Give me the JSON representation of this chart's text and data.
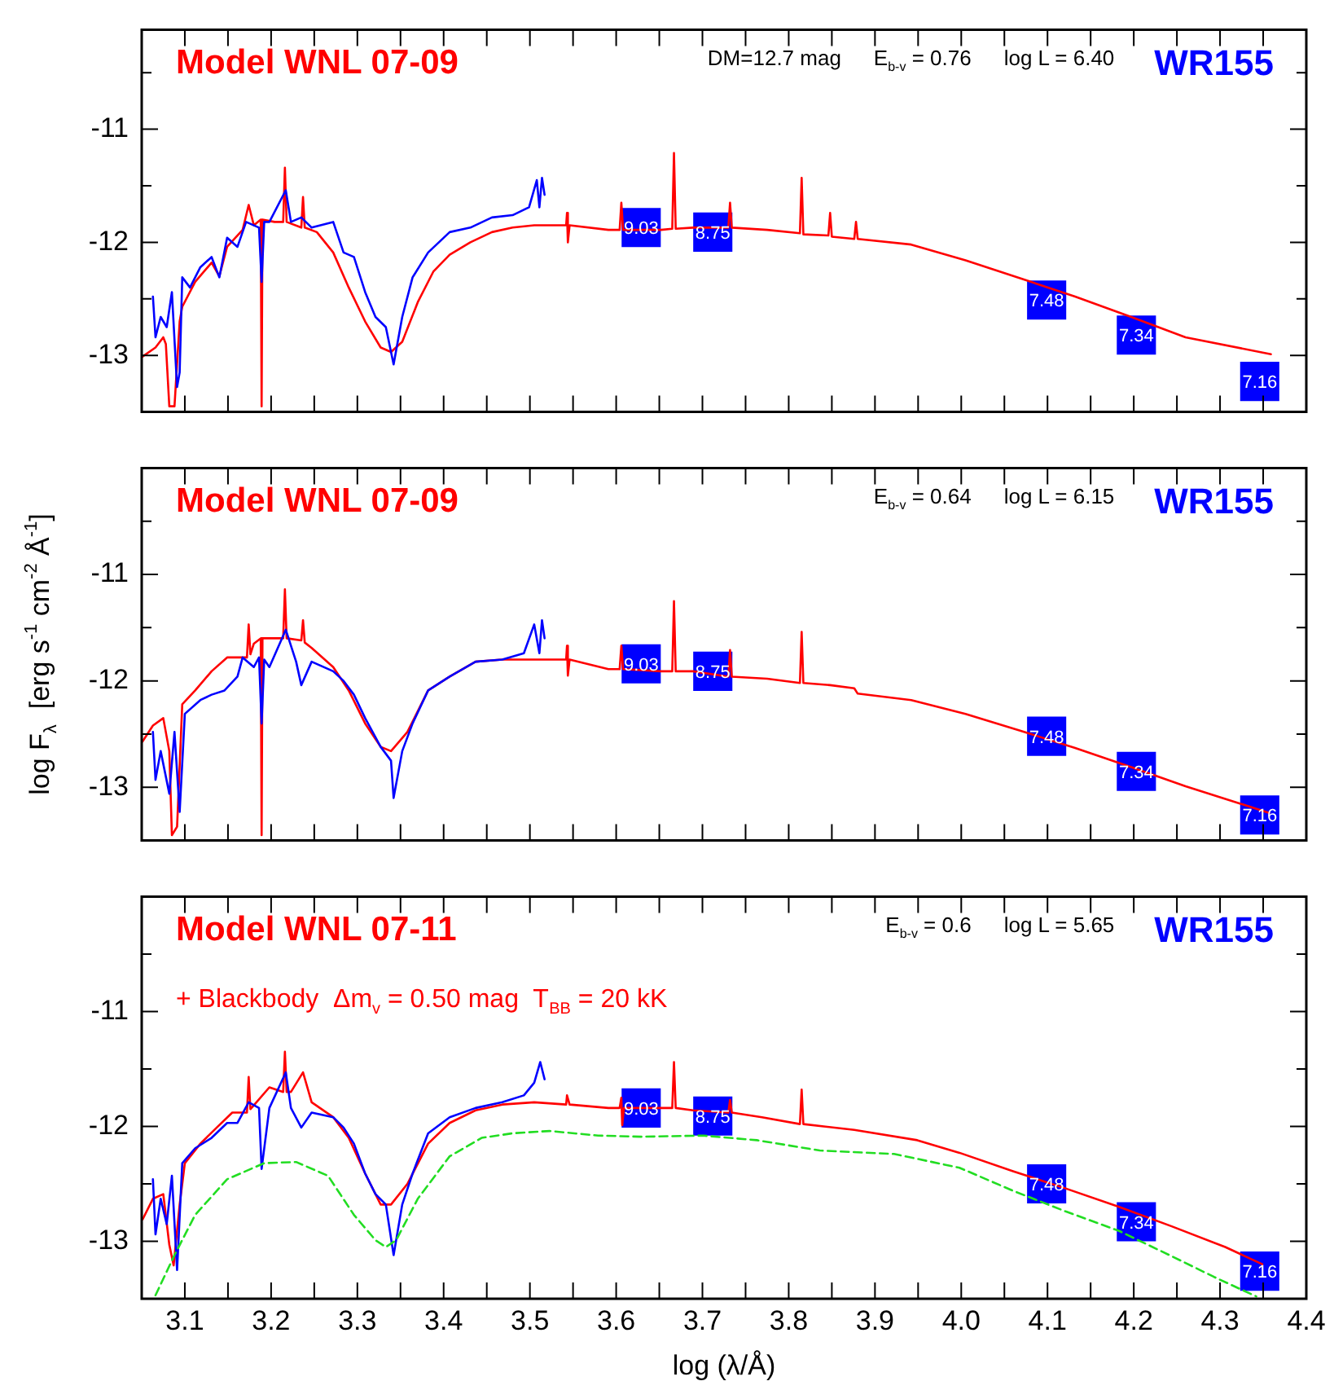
{
  "chart_data": [
    {
      "type": "line",
      "title": "Model WNL 07-09",
      "annotations": [
        "DM=12.7 mag",
        "E$_{b-v}$ = 0.76",
        "log L = 6.40",
        "WR155",
        {
          "text": "9.03",
          "x": 3.629,
          "y": -11.87
        },
        {
          "text": "8.75",
          "x": 3.712,
          "y": -11.91
        },
        {
          "text": "7.48",
          "x": 4.099,
          "y": -12.51
        },
        {
          "text": "7.34",
          "x": 4.203,
          "y": -12.82
        },
        {
          "text": "7.16",
          "x": 4.346,
          "y": -13.23
        }
      ],
      "xlim": [
        3.05,
        4.4
      ],
      "ylim": [
        -13.5,
        -10.12
      ],
      "tick_labels": "y",
      "xticks": [
        3.1,
        {
          "value": 3.15,
          "label": null
        },
        3.2,
        {
          "value": 3.25,
          "label": null
        },
        3.3,
        {
          "value": 3.35,
          "label": null
        },
        3.4,
        {
          "value": 3.45,
          "label": null
        },
        3.5,
        {
          "value": 3.55,
          "label": null
        },
        3.6,
        {
          "value": 3.65,
          "label": null
        },
        3.7,
        {
          "value": 3.75,
          "label": null
        },
        3.8,
        {
          "value": 3.85,
          "label": null
        },
        3.9,
        {
          "value": 3.95,
          "label": null
        },
        4,
        {
          "value": 4.05,
          "label": null
        },
        4.1,
        {
          "value": 4.15,
          "label": null
        },
        4.2,
        {
          "value": 4.25,
          "label": null
        },
        4.3,
        {
          "value": 4.35,
          "label": null
        },
        4.4
      ],
      "yticks": [
        {
          "value": -13,
          "label": "-13"
        },
        {
          "value": -12.5,
          "label": null
        },
        {
          "value": -12,
          "label": "-12"
        },
        {
          "value": -11.5,
          "label": null
        },
        {
          "value": -11,
          "label": "-11"
        },
        {
          "value": -10.5,
          "label": null
        }
      ],
      "series": [
        {
          "type": "scatter",
          "color": "#0000ff",
          "marker": "square",
          "x": [
            3.629,
            3.712,
            4.099,
            4.203,
            4.346
          ],
          "values": [
            -11.87,
            -11.91,
            -12.51,
            -12.82,
            -13.23
          ]
        },
        {
          "type": "line",
          "color": "#0000ff",
          "x": [
            3.063,
            3.066,
            3.072,
            3.079,
            3.085,
            3.091,
            3.094,
            3.097,
            3.106,
            3.118,
            3.131,
            3.14,
            3.149,
            3.161,
            3.171,
            3.186,
            3.189,
            3.192,
            3.198,
            3.217,
            3.223,
            3.235,
            3.247,
            3.272,
            3.284,
            3.296,
            3.309,
            3.321,
            3.333,
            3.342,
            3.352,
            3.364,
            3.382,
            3.407,
            3.431,
            3.456,
            3.48,
            3.499,
            3.508,
            3.511,
            3.514,
            3.517
          ],
          "values": [
            -12.48,
            -12.84,
            -12.66,
            -12.75,
            -12.44,
            -13.28,
            -13.15,
            -12.31,
            -12.4,
            -12.22,
            -12.13,
            -12.31,
            -11.96,
            -12.04,
            -11.82,
            -11.87,
            -12.35,
            -11.82,
            -11.82,
            -11.54,
            -11.82,
            -11.78,
            -11.87,
            -11.82,
            -12.09,
            -12.13,
            -12.44,
            -12.66,
            -12.75,
            -13.08,
            -12.66,
            -12.31,
            -12.09,
            -11.91,
            -11.87,
            -11.78,
            -11.76,
            -11.69,
            -11.45,
            -11.69,
            -11.43,
            -11.58
          ]
        },
        {
          "type": "line",
          "color": "#ff0000",
          "x": [
            3.051,
            3.066,
            3.075,
            3.078,
            3.082,
            3.088,
            3.094,
            3.097,
            3.112,
            3.131,
            3.14,
            3.149,
            3.167,
            3.174,
            3.18,
            3.188,
            3.189,
            3.19,
            3.204,
            3.214,
            3.216,
            3.218,
            3.235,
            3.237,
            3.239,
            3.253,
            3.272,
            3.29,
            3.309,
            3.327,
            3.339,
            3.352,
            3.37,
            3.388,
            3.407,
            3.431,
            3.456,
            3.48,
            3.505,
            3.542,
            3.543,
            3.544,
            3.546,
            3.591,
            3.604,
            3.606,
            3.608,
            3.652,
            3.665,
            3.667,
            3.669,
            3.689,
            3.73,
            3.732,
            3.734,
            3.775,
            3.813,
            3.815,
            3.817,
            3.846,
            3.848,
            3.85,
            3.876,
            3.878,
            3.88,
            3.942,
            4.005,
            4.069,
            4.132,
            4.197,
            4.26,
            4.359
          ],
          "values": [
            -13.01,
            -12.93,
            -12.84,
            -12.9,
            -13.45,
            -13.45,
            -12.7,
            -12.57,
            -12.35,
            -12.18,
            -12.3,
            -12.04,
            -11.89,
            -11.67,
            -11.85,
            -11.8,
            -13.45,
            -11.8,
            -11.82,
            -11.82,
            -11.34,
            -11.82,
            -11.87,
            -11.6,
            -11.87,
            -11.91,
            -12.09,
            -12.4,
            -12.7,
            -12.93,
            -12.97,
            -12.88,
            -12.53,
            -12.26,
            -12.11,
            -12.0,
            -11.91,
            -11.87,
            -11.85,
            -11.85,
            -11.74,
            -12.0,
            -11.85,
            -11.89,
            -11.89,
            -11.65,
            -11.89,
            -11.89,
            -11.88,
            -11.21,
            -11.88,
            -11.87,
            -11.87,
            -11.65,
            -11.87,
            -11.89,
            -11.92,
            -11.43,
            -11.93,
            -11.94,
            -11.74,
            -11.95,
            -11.97,
            -11.82,
            -11.97,
            -12.02,
            -12.16,
            -12.32,
            -12.48,
            -12.66,
            -12.84,
            -12.99
          ]
        }
      ]
    },
    {
      "type": "line",
      "title": "Model WNL 07-09",
      "ylabel": "log F$_{λ}$  [erg s$^{-1}$ cm$^{-2}$ Å$^{-1}$]",
      "annotations": [
        "E$_{b-v}$ = 0.64",
        "log L = 6.15",
        "WR155",
        {
          "text": "9.03",
          "x": 3.629,
          "y": -11.84
        },
        {
          "text": "8.75",
          "x": 3.712,
          "y": -11.91
        },
        {
          "text": "7.48",
          "x": 4.099,
          "y": -12.52
        },
        {
          "text": "7.34",
          "x": 4.203,
          "y": -12.85
        },
        {
          "text": "7.16",
          "x": 4.346,
          "y": -13.26
        }
      ],
      "xlim": [
        3.05,
        4.4
      ],
      "ylim": [
        -13.5,
        -10.0
      ],
      "tick_labels": "y",
      "xticks": [
        3.1,
        {
          "value": 3.15,
          "label": null
        },
        3.2,
        {
          "value": 3.25,
          "label": null
        },
        3.3,
        {
          "value": 3.35,
          "label": null
        },
        3.4,
        {
          "value": 3.45,
          "label": null
        },
        3.5,
        {
          "value": 3.55,
          "label": null
        },
        3.6,
        {
          "value": 3.65,
          "label": null
        },
        3.7,
        {
          "value": 3.75,
          "label": null
        },
        3.8,
        {
          "value": 3.85,
          "label": null
        },
        3.9,
        {
          "value": 3.95,
          "label": null
        },
        4,
        {
          "value": 4.05,
          "label": null
        },
        4.1,
        {
          "value": 4.15,
          "label": null
        },
        4.2,
        {
          "value": 4.25,
          "label": null
        },
        4.3,
        {
          "value": 4.35,
          "label": null
        },
        4.4
      ],
      "yticks": [
        {
          "value": -13,
          "label": "-13"
        },
        {
          "value": -12.5,
          "label": null
        },
        {
          "value": -12,
          "label": "-12"
        },
        {
          "value": -11.5,
          "label": null
        },
        {
          "value": -11,
          "label": "-11"
        },
        {
          "value": -10.5,
          "label": null
        }
      ],
      "series": [
        {
          "type": "scatter",
          "color": "#0000ff",
          "marker": "square",
          "x": [
            3.629,
            3.712,
            4.099,
            4.203,
            4.346
          ],
          "values": [
            -11.84,
            -11.91,
            -12.52,
            -12.85,
            -13.26
          ]
        },
        {
          "type": "line",
          "color": "#0000ff",
          "x": [
            3.063,
            3.066,
            3.072,
            3.082,
            3.088,
            3.094,
            3.1,
            3.118,
            3.131,
            3.146,
            3.161,
            3.167,
            3.18,
            3.186,
            3.189,
            3.192,
            3.198,
            3.217,
            3.229,
            3.235,
            3.247,
            3.272,
            3.284,
            3.296,
            3.309,
            3.327,
            3.339,
            3.342,
            3.352,
            3.364,
            3.382,
            3.407,
            3.437,
            3.468,
            3.493,
            3.505,
            3.511,
            3.514,
            3.517
          ],
          "values": [
            -12.48,
            -12.93,
            -12.66,
            -13.06,
            -12.48,
            -13.23,
            -12.31,
            -12.18,
            -12.13,
            -12.09,
            -11.96,
            -11.78,
            -11.87,
            -11.78,
            -12.4,
            -11.8,
            -11.87,
            -11.52,
            -11.82,
            -12.04,
            -11.82,
            -11.91,
            -12.0,
            -12.13,
            -12.35,
            -12.62,
            -12.75,
            -13.1,
            -12.66,
            -12.4,
            -12.09,
            -11.96,
            -11.82,
            -11.8,
            -11.74,
            -11.47,
            -11.74,
            -11.43,
            -11.6
          ]
        },
        {
          "type": "line",
          "color": "#ff0000",
          "x": [
            3.051,
            3.063,
            3.075,
            3.082,
            3.085,
            3.091,
            3.097,
            3.112,
            3.131,
            3.149,
            3.172,
            3.174,
            3.176,
            3.18,
            3.188,
            3.189,
            3.19,
            3.204,
            3.214,
            3.216,
            3.218,
            3.235,
            3.237,
            3.239,
            3.247,
            3.272,
            3.29,
            3.309,
            3.327,
            3.339,
            3.358,
            3.382,
            3.407,
            3.437,
            3.468,
            3.505,
            3.542,
            3.543,
            3.544,
            3.546,
            3.591,
            3.604,
            3.606,
            3.608,
            3.652,
            3.665,
            3.667,
            3.669,
            3.689,
            3.73,
            3.732,
            3.734,
            3.775,
            3.813,
            3.815,
            3.817,
            3.848,
            3.876,
            3.88,
            3.942,
            4.005,
            4.069,
            4.132,
            4.197,
            4.26,
            4.357
          ],
          "values": [
            -12.57,
            -12.42,
            -12.35,
            -12.66,
            -13.45,
            -13.37,
            -12.22,
            -12.09,
            -11.91,
            -11.78,
            -11.78,
            -11.47,
            -11.75,
            -11.65,
            -11.6,
            -13.45,
            -11.6,
            -11.6,
            -11.6,
            -11.14,
            -11.6,
            -11.62,
            -11.43,
            -11.64,
            -11.69,
            -11.87,
            -12.09,
            -12.4,
            -12.62,
            -12.66,
            -12.48,
            -12.09,
            -11.96,
            -11.82,
            -11.8,
            -11.8,
            -11.8,
            -11.67,
            -11.95,
            -11.8,
            -11.89,
            -11.89,
            -11.67,
            -11.89,
            -11.91,
            -11.91,
            -11.25,
            -11.91,
            -11.91,
            -11.96,
            -11.71,
            -11.96,
            -11.98,
            -12.02,
            -11.54,
            -12.02,
            -12.04,
            -12.07,
            -12.12,
            -12.18,
            -12.31,
            -12.47,
            -12.63,
            -12.81,
            -12.99,
            -13.24
          ]
        }
      ]
    },
    {
      "type": "line",
      "title": "Model WNL 07-11",
      "subtitle": "+ Blackbody  Δm$_{v}$ = 0.50 mag  T$_{BB}$ = 20 kK",
      "xlabel": "log (λ/Å)",
      "annotations": [
        "E$_{b-v}$ = 0.6",
        "log L = 5.65",
        "WR155",
        {
          "text": "9.03",
          "x": 3.629,
          "y": -11.84
        },
        {
          "text": "8.75",
          "x": 3.712,
          "y": -11.91
        },
        {
          "text": "7.48",
          "x": 4.099,
          "y": -12.5
        },
        {
          "text": "7.34",
          "x": 4.203,
          "y": -12.83
        },
        {
          "text": "7.16",
          "x": 4.346,
          "y": -13.26
        }
      ],
      "xlim": [
        3.05,
        4.4
      ],
      "ylim": [
        -13.5,
        -10.0
      ],
      "xticks": [
        3.1,
        {
          "value": 3.15,
          "label": null
        },
        3.2,
        {
          "value": 3.25,
          "label": null
        },
        3.3,
        {
          "value": 3.35,
          "label": null
        },
        3.4,
        {
          "value": 3.45,
          "label": null
        },
        3.5,
        {
          "value": 3.55,
          "label": null
        },
        3.6,
        {
          "value": 3.65,
          "label": null
        },
        3.7,
        {
          "value": 3.75,
          "label": null
        },
        3.8,
        {
          "value": 3.85,
          "label": null
        },
        3.9,
        {
          "value": 3.95,
          "label": null
        },
        {
          "value": 4,
          "label": "4.0"
        },
        {
          "value": 4.05,
          "label": null
        },
        4.1,
        {
          "value": 4.15,
          "label": null
        },
        4.2,
        {
          "value": 4.25,
          "label": null
        },
        4.3,
        {
          "value": 4.35,
          "label": null
        },
        4.4
      ],
      "yticks": [
        {
          "value": -13,
          "label": "-13"
        },
        {
          "value": -12.5,
          "label": null
        },
        {
          "value": -12,
          "label": "-12"
        },
        {
          "value": -11.5,
          "label": null
        },
        {
          "value": -11,
          "label": "-11"
        },
        {
          "value": -10.5,
          "label": null
        }
      ],
      "series": [
        {
          "type": "scatter",
          "color": "#0000ff",
          "marker": "square",
          "x": [
            3.629,
            3.712,
            4.099,
            4.203,
            4.346
          ],
          "values": [
            -11.84,
            -11.91,
            -12.5,
            -12.83,
            -13.26
          ]
        },
        {
          "type": "line",
          "color": "#22dd22",
          "line_style": "dashed",
          "x": [
            3.066,
            3.088,
            3.112,
            3.149,
            3.192,
            3.229,
            3.266,
            3.296,
            3.321,
            3.333,
            3.345,
            3.37,
            3.407,
            3.444,
            3.48,
            3.523,
            3.579,
            3.628,
            3.701,
            3.763,
            3.836,
            3.922,
            3.998,
            4.06,
            4.121,
            4.183,
            4.244,
            4.293,
            4.342
          ],
          "values": [
            -13.47,
            -13.12,
            -12.77,
            -12.46,
            -12.32,
            -12.31,
            -12.43,
            -12.77,
            -12.99,
            -13.05,
            -12.99,
            -12.63,
            -12.26,
            -12.1,
            -12.06,
            -12.04,
            -12.08,
            -12.09,
            -12.08,
            -12.12,
            -12.21,
            -12.24,
            -12.36,
            -12.56,
            -12.74,
            -12.91,
            -13.13,
            -13.31,
            -13.48
          ]
        },
        {
          "type": "line",
          "color": "#0000ff",
          "x": [
            3.063,
            3.066,
            3.072,
            3.079,
            3.085,
            3.091,
            3.097,
            3.112,
            3.131,
            3.149,
            3.161,
            3.174,
            3.186,
            3.189,
            3.198,
            3.217,
            3.223,
            3.235,
            3.247,
            3.272,
            3.284,
            3.296,
            3.309,
            3.321,
            3.333,
            3.342,
            3.352,
            3.364,
            3.382,
            3.407,
            3.437,
            3.468,
            3.493,
            3.505,
            3.512,
            3.517
          ],
          "values": [
            -12.46,
            -12.94,
            -12.63,
            -12.85,
            -12.43,
            -13.25,
            -12.32,
            -12.19,
            -12.1,
            -11.97,
            -11.97,
            -11.79,
            -11.84,
            -12.37,
            -11.84,
            -11.53,
            -11.84,
            -12.01,
            -11.88,
            -11.92,
            -12.01,
            -12.15,
            -12.41,
            -12.59,
            -12.68,
            -13.12,
            -12.68,
            -12.41,
            -12.06,
            -11.92,
            -11.84,
            -11.79,
            -11.73,
            -11.62,
            -11.44,
            -11.59
          ]
        },
        {
          "type": "line",
          "color": "#ff0000",
          "x": [
            3.051,
            3.063,
            3.075,
            3.082,
            3.087,
            3.094,
            3.1,
            3.118,
            3.137,
            3.155,
            3.172,
            3.174,
            3.176,
            3.183,
            3.198,
            3.214,
            3.216,
            3.218,
            3.223,
            3.237,
            3.247,
            3.272,
            3.29,
            3.309,
            3.327,
            3.339,
            3.358,
            3.382,
            3.407,
            3.437,
            3.468,
            3.505,
            3.542,
            3.543,
            3.546,
            3.591,
            3.604,
            3.606,
            3.607,
            3.609,
            3.652,
            3.665,
            3.667,
            3.669,
            3.689,
            3.73,
            3.732,
            3.734,
            3.769,
            3.813,
            3.815,
            3.817,
            3.876,
            3.949,
            3.998,
            4.06,
            4.121,
            4.183,
            4.244,
            4.306,
            4.349
          ],
          "values": [
            -12.81,
            -12.63,
            -12.59,
            -13.03,
            -13.21,
            -12.68,
            -12.32,
            -12.15,
            -12.01,
            -11.88,
            -11.88,
            -11.57,
            -11.85,
            -11.79,
            -11.66,
            -11.7,
            -11.35,
            -11.7,
            -11.7,
            -11.53,
            -11.79,
            -11.92,
            -12.1,
            -12.41,
            -12.68,
            -12.68,
            -12.5,
            -12.15,
            -11.97,
            -11.86,
            -11.81,
            -11.79,
            -11.81,
            -11.73,
            -11.81,
            -11.84,
            -11.84,
            -11.75,
            -11.99,
            -11.84,
            -11.84,
            -11.84,
            -11.44,
            -11.84,
            -11.86,
            -11.88,
            -11.77,
            -11.88,
            -11.92,
            -11.98,
            -11.68,
            -11.98,
            -12.03,
            -12.12,
            -12.23,
            -12.39,
            -12.54,
            -12.7,
            -12.87,
            -13.05,
            -13.2
          ]
        }
      ]
    }
  ]
}
